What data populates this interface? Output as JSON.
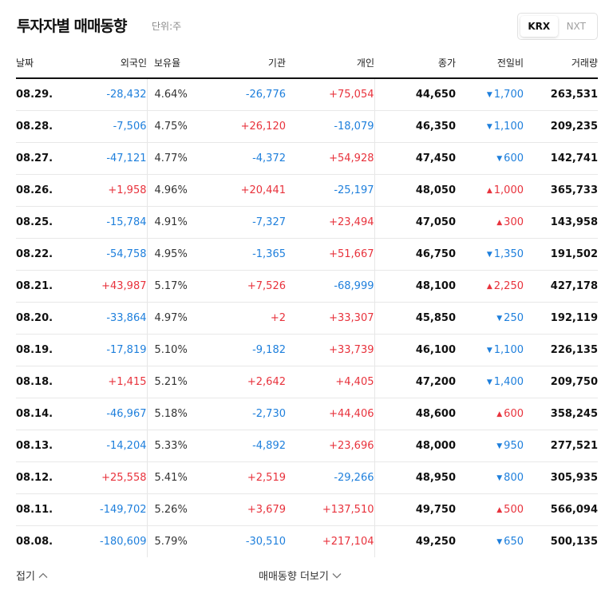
{
  "header": {
    "title": "투자자별 매매동향",
    "unit": "단위:주",
    "tabs": [
      {
        "label": "KRX",
        "active": true
      },
      {
        "label": "NXT",
        "active": false
      }
    ]
  },
  "columns": {
    "date": "날짜",
    "foreign": "외국인",
    "ownership": "보유율",
    "institution": "기관",
    "individual": "개인",
    "close": "종가",
    "change": "전일비",
    "volume": "거래량"
  },
  "rows": [
    {
      "date": "08.29.",
      "foreign": "-28,432",
      "ownership": "4.64%",
      "institution": "-26,776",
      "individual": "+75,054",
      "close": "44,650",
      "change_dir": "down",
      "change": "1,700",
      "volume": "263,531"
    },
    {
      "date": "08.28.",
      "foreign": "-7,506",
      "ownership": "4.75%",
      "institution": "+26,120",
      "individual": "-18,079",
      "close": "46,350",
      "change_dir": "down",
      "change": "1,100",
      "volume": "209,235"
    },
    {
      "date": "08.27.",
      "foreign": "-47,121",
      "ownership": "4.77%",
      "institution": "-4,372",
      "individual": "+54,928",
      "close": "47,450",
      "change_dir": "down",
      "change": "600",
      "volume": "142,741"
    },
    {
      "date": "08.26.",
      "foreign": "+1,958",
      "ownership": "4.96%",
      "institution": "+20,441",
      "individual": "-25,197",
      "close": "48,050",
      "change_dir": "up",
      "change": "1,000",
      "volume": "365,733"
    },
    {
      "date": "08.25.",
      "foreign": "-15,784",
      "ownership": "4.91%",
      "institution": "-7,327",
      "individual": "+23,494",
      "close": "47,050",
      "change_dir": "up",
      "change": "300",
      "volume": "143,958"
    },
    {
      "date": "08.22.",
      "foreign": "-54,758",
      "ownership": "4.95%",
      "institution": "-1,365",
      "individual": "+51,667",
      "close": "46,750",
      "change_dir": "down",
      "change": "1,350",
      "volume": "191,502"
    },
    {
      "date": "08.21.",
      "foreign": "+43,987",
      "ownership": "5.17%",
      "institution": "+7,526",
      "individual": "-68,999",
      "close": "48,100",
      "change_dir": "up",
      "change": "2,250",
      "volume": "427,178"
    },
    {
      "date": "08.20.",
      "foreign": "-33,864",
      "ownership": "4.97%",
      "institution": "+2",
      "individual": "+33,307",
      "close": "45,850",
      "change_dir": "down",
      "change": "250",
      "volume": "192,119"
    },
    {
      "date": "08.19.",
      "foreign": "-17,819",
      "ownership": "5.10%",
      "institution": "-9,182",
      "individual": "+33,739",
      "close": "46,100",
      "change_dir": "down",
      "change": "1,100",
      "volume": "226,135"
    },
    {
      "date": "08.18.",
      "foreign": "+1,415",
      "ownership": "5.21%",
      "institution": "+2,642",
      "individual": "+4,405",
      "close": "47,200",
      "change_dir": "down",
      "change": "1,400",
      "volume": "209,750"
    },
    {
      "date": "08.14.",
      "foreign": "-46,967",
      "ownership": "5.18%",
      "institution": "-2,730",
      "individual": "+44,406",
      "close": "48,600",
      "change_dir": "up",
      "change": "600",
      "volume": "358,245"
    },
    {
      "date": "08.13.",
      "foreign": "-14,204",
      "ownership": "5.33%",
      "institution": "-4,892",
      "individual": "+23,696",
      "close": "48,000",
      "change_dir": "down",
      "change": "950",
      "volume": "277,521"
    },
    {
      "date": "08.12.",
      "foreign": "+25,558",
      "ownership": "5.41%",
      "institution": "+2,519",
      "individual": "-29,266",
      "close": "48,950",
      "change_dir": "down",
      "change": "800",
      "volume": "305,935"
    },
    {
      "date": "08.11.",
      "foreign": "-149,702",
      "ownership": "5.26%",
      "institution": "+3,679",
      "individual": "+137,510",
      "close": "49,750",
      "change_dir": "up",
      "change": "500",
      "volume": "566,094"
    },
    {
      "date": "08.08.",
      "foreign": "-180,609",
      "ownership": "5.79%",
      "institution": "-30,510",
      "individual": "+217,104",
      "close": "49,250",
      "change_dir": "down",
      "change": "650",
      "volume": "500,135"
    }
  ],
  "footer": {
    "collapse_label": "접기",
    "more_label": "매매동향 더보기"
  },
  "colors": {
    "positive": "#e8323c",
    "negative": "#1e7fdc"
  },
  "icons": {
    "up": "triangle-up-icon",
    "down": "triangle-down-icon",
    "collapse": "chevron-up-icon",
    "more": "chevron-down-icon"
  }
}
